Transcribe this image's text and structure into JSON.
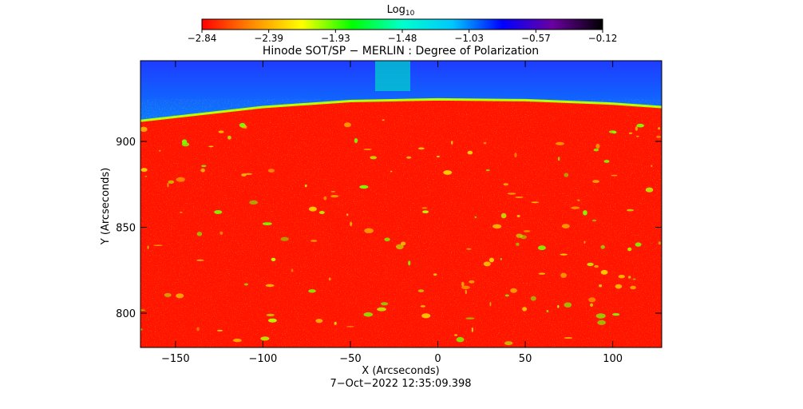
{
  "colorbar": {
    "label": "Log",
    "label_sub": "10",
    "ticks": [
      "−2.84",
      "−2.39",
      "−1.93",
      "−1.48",
      "−1.03",
      "−0.57",
      "−0.12"
    ],
    "min": -2.84,
    "max": -0.12,
    "colors": [
      "#ff0000",
      "#ff8a00",
      "#ffff00",
      "#00ff00",
      "#00ffcc",
      "#00c8ff",
      "#0000ff",
      "#6a00a0",
      "#000000"
    ]
  },
  "chart_data": {
    "type": "heatmap",
    "title": "Hinode SOT/SP − MERLIN : Degree of Polarization",
    "xlabel": "X (Arcseconds)",
    "ylabel": "Y (Arcseconds)",
    "xlim": [
      -170,
      128
    ],
    "ylim": [
      780,
      947
    ],
    "x_ticks": [
      -150,
      -100,
      -50,
      0,
      50,
      100
    ],
    "y_ticks": [
      800,
      850,
      900
    ],
    "x_tick_labels": [
      "−150",
      "−100",
      "−50",
      "0",
      "50",
      "100"
    ],
    "y_tick_labels": [
      "800",
      "850",
      "900"
    ],
    "limb": {
      "x": [
        -170,
        -100,
        -50,
        0,
        50,
        100,
        128
      ],
      "y": [
        912,
        920,
        923.5,
        924.5,
        924,
        922,
        920
      ]
    },
    "disk_value_log10": -2.84,
    "offdisk_value_log10": -1.03,
    "colorbar_label": "Log10"
  },
  "footer": {
    "timestamp": "7−Oct−2022 12:35:09.398"
  }
}
